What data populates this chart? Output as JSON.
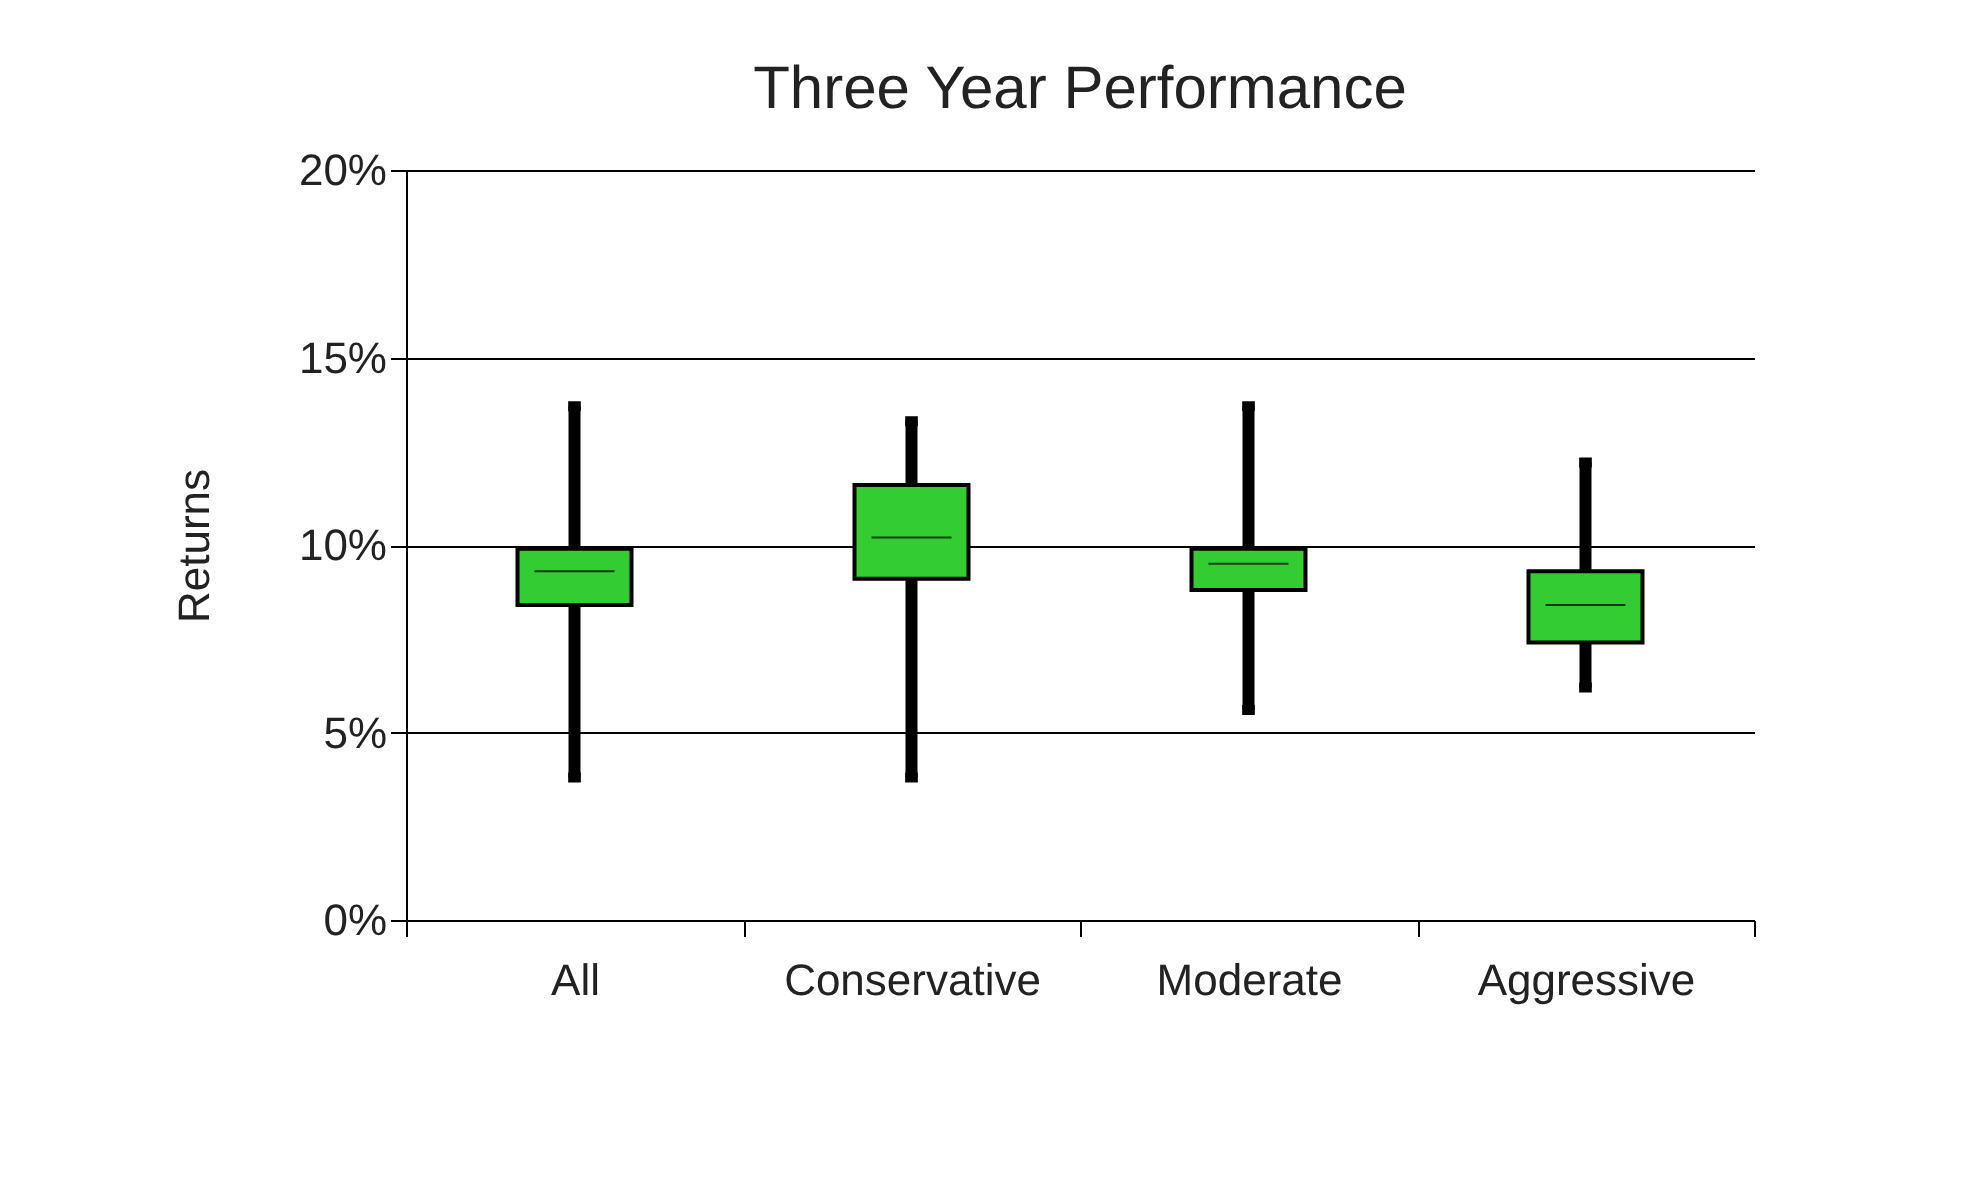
{
  "chart_data": {
    "type": "box",
    "title": "Three Year Performance",
    "ylabel": "Returns",
    "categories": [
      "All",
      "Conservative",
      "Moderate",
      "Aggressive"
    ],
    "boxes": [
      {
        "low": 3.8,
        "q1": 8.4,
        "median": 9.3,
        "q3": 9.9,
        "high": 13.7
      },
      {
        "low": 3.8,
        "q1": 9.1,
        "median": 10.2,
        "q3": 11.6,
        "high": 13.3
      },
      {
        "low": 5.6,
        "q1": 8.8,
        "median": 9.5,
        "q3": 9.9,
        "high": 13.7
      },
      {
        "low": 6.2,
        "q1": 7.4,
        "median": 8.4,
        "q3": 9.3,
        "high": 12.2
      }
    ],
    "color": "#33cc33",
    "ylim": [
      0,
      20
    ],
    "yticks": [
      {
        "value": 0,
        "label": "0%"
      },
      {
        "value": 5,
        "label": "5%"
      },
      {
        "value": 10,
        "label": "10%"
      },
      {
        "value": 15,
        "label": "15%"
      },
      {
        "value": 20,
        "label": "20%"
      }
    ],
    "grid": "y"
  }
}
